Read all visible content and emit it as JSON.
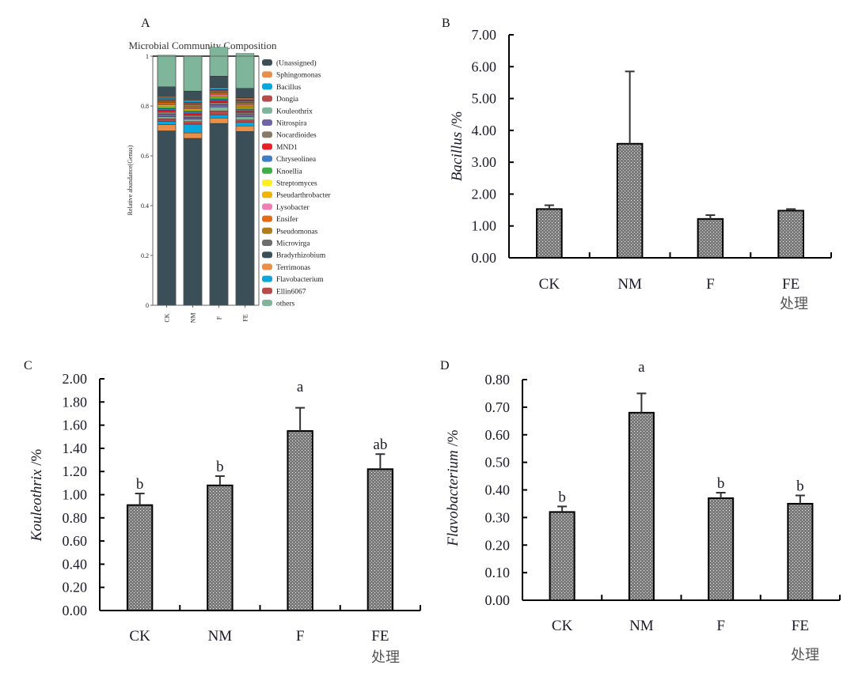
{
  "chart_data": [
    {
      "id": "A",
      "panel_label": "A",
      "type": "bar",
      "stacked": true,
      "title": "Microbial Community Composition",
      "xlabel": "",
      "ylabel": "Relative abundance(Genus)",
      "ylim": [
        0,
        1
      ],
      "yticks": [
        "0",
        "0.2",
        "0.4",
        "0.6",
        "0.8",
        "1"
      ],
      "categories": [
        "CK",
        "NM",
        "F",
        "FE"
      ],
      "legend_position": "right",
      "series": [
        {
          "name": "Bradyrhizobium",
          "color": "#3a4f58",
          "values": [
            0.7,
            0.67,
            0.73,
            0.698
          ]
        },
        {
          "name": "Terrimonas",
          "color": "#e8904a",
          "values": [
            0.025,
            0.022,
            0.022,
            0.022
          ]
        },
        {
          "name": "Flavobacterium",
          "color": "#0aa7dc",
          "values": [
            0.012,
            0.035,
            0.013,
            0.014
          ]
        },
        {
          "name": "Ellin6067",
          "color": "#b94a4a",
          "values": [
            0.012,
            0.01,
            0.015,
            0.01
          ]
        },
        {
          "name": "Kouleothrix",
          "color": "#7fb59a",
          "values": [
            0.008,
            0.01,
            0.016,
            0.012
          ]
        },
        {
          "name": "Nitrospira",
          "color": "#6f64a8",
          "values": [
            0.01,
            0.008,
            0.01,
            0.01
          ]
        },
        {
          "name": "Nocardioides",
          "color": "#8a7a6a",
          "values": [
            0.01,
            0.008,
            0.008,
            0.008
          ]
        },
        {
          "name": "MND1",
          "color": "#e82026",
          "values": [
            0.006,
            0.006,
            0.008,
            0.006
          ]
        },
        {
          "name": "Chryseolinea",
          "color": "#3c7fc4",
          "values": [
            0.006,
            0.006,
            0.006,
            0.006
          ]
        },
        {
          "name": "Knoellia",
          "color": "#3fae49",
          "values": [
            0.005,
            0.005,
            0.005,
            0.005
          ]
        },
        {
          "name": "Streptomyces",
          "color": "#ffef1f",
          "values": [
            0.005,
            0.004,
            0.004,
            0.004
          ]
        },
        {
          "name": "Pseudarthrobacter",
          "color": "#f0b400",
          "values": [
            0.006,
            0.005,
            0.004,
            0.005
          ]
        },
        {
          "name": "Lysobacter",
          "color": "#ec7fb4",
          "values": [
            0.004,
            0.004,
            0.006,
            0.005
          ]
        },
        {
          "name": "Ensifer",
          "color": "#e46b12",
          "values": [
            0.005,
            0.004,
            0.004,
            0.005
          ]
        },
        {
          "name": "Pseudomonas",
          "color": "#b07c1c",
          "values": [
            0.005,
            0.008,
            0.005,
            0.005
          ]
        },
        {
          "name": "Microvirga",
          "color": "#6e6e6e",
          "values": [
            0.005,
            0.005,
            0.005,
            0.005
          ]
        },
        {
          "name": "Dongia",
          "color": "#b94a4a",
          "values": [
            0.005,
            0.005,
            0.005,
            0.005
          ]
        },
        {
          "name": "Bacillus",
          "color": "#0aa7dc",
          "values": [
            0.004,
            0.005,
            0.004,
            0.004
          ]
        },
        {
          "name": "Sphingomonas",
          "color": "#e8904a",
          "values": [
            0.004,
            0.004,
            0.004,
            0.004
          ]
        },
        {
          "name": "(Unassigned)",
          "color": "#3a4f58",
          "values": [
            0.04,
            0.036,
            0.046,
            0.038
          ]
        },
        {
          "name": "others",
          "color": "#7fb59a",
          "values": [
            0.127,
            0.14,
            0.116,
            0.14
          ]
        }
      ],
      "legend_order": [
        "(Unassigned)",
        "Sphingomonas",
        "Bacillus",
        "Dongia",
        "Kouleothrix",
        "Nitrospira",
        "Nocardioides",
        "MND1",
        "Chryseolinea",
        "Knoellia",
        "Streptomyces",
        "Pseudarthrobacter",
        "Lysobacter",
        "Ensifer",
        "Pseudomonas",
        "Microvirga",
        "Bradyrhizobium",
        "Terrimonas",
        "Flavobacterium",
        "Ellin6067",
        "others"
      ]
    },
    {
      "id": "B",
      "panel_label": "B",
      "type": "bar",
      "title": "",
      "ylabel_italic": "Bacillus",
      "ylabel_unit": " /%",
      "xlabel": "处理",
      "ylim": [
        0,
        7
      ],
      "yticks": [
        "0.00",
        "1.00",
        "2.00",
        "3.00",
        "4.00",
        "5.00",
        "6.00",
        "7.00"
      ],
      "categories": [
        "CK",
        "NM",
        "F",
        "FE"
      ],
      "values": [
        1.53,
        3.58,
        1.22,
        1.48
      ],
      "errors": [
        0.12,
        2.27,
        0.12,
        0.05
      ],
      "significance": [
        "",
        "",
        "",
        ""
      ]
    },
    {
      "id": "C",
      "panel_label": "C",
      "type": "bar",
      "title": "",
      "ylabel_italic": "Kouleothrix",
      "ylabel_unit": " /%",
      "xlabel": "处理",
      "ylim": [
        0,
        2
      ],
      "yticks": [
        "0.00",
        "0.20",
        "0.40",
        "0.60",
        "0.80",
        "1.00",
        "1.20",
        "1.40",
        "1.60",
        "1.80",
        "2.00"
      ],
      "categories": [
        "CK",
        "NM",
        "F",
        "FE"
      ],
      "values": [
        0.91,
        1.08,
        1.55,
        1.22
      ],
      "errors": [
        0.1,
        0.08,
        0.2,
        0.13
      ],
      "significance": [
        "b",
        "b",
        "a",
        "ab"
      ]
    },
    {
      "id": "D",
      "panel_label": "D",
      "type": "bar",
      "title": "",
      "ylabel_italic": "Flavobacterium",
      "ylabel_unit": " /%",
      "xlabel": "处理",
      "ylim": [
        0,
        0.8
      ],
      "yticks": [
        "0.00",
        "0.10",
        "0.20",
        "0.30",
        "0.40",
        "0.50",
        "0.60",
        "0.70",
        "0.80"
      ],
      "categories": [
        "CK",
        "NM",
        "F",
        "FE"
      ],
      "values": [
        0.32,
        0.68,
        0.37,
        0.35
      ],
      "errors": [
        0.02,
        0.07,
        0.02,
        0.03
      ],
      "significance": [
        "b",
        "a",
        "b",
        "b"
      ]
    }
  ]
}
